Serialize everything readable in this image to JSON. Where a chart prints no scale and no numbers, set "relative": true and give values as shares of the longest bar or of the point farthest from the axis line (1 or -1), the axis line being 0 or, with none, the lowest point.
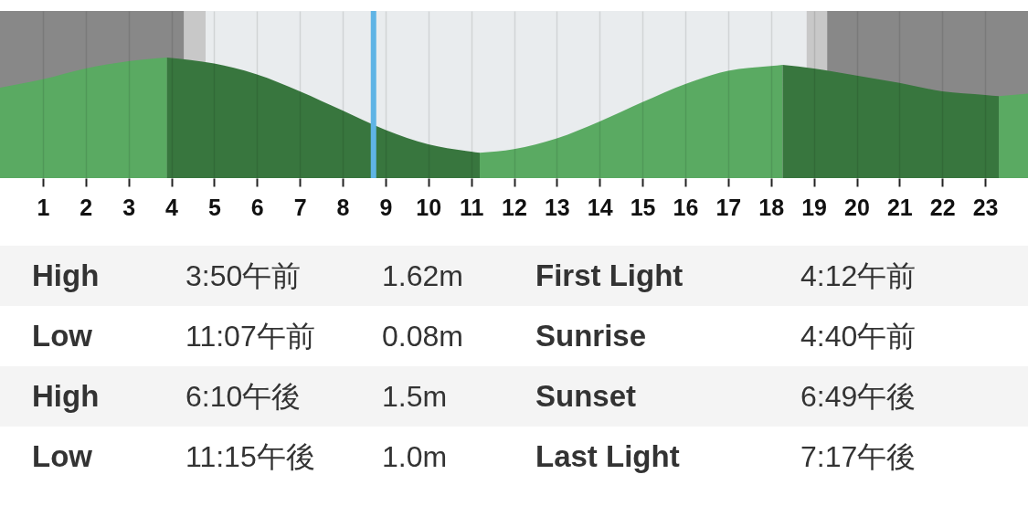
{
  "chart_data": {
    "type": "area",
    "relative": true,
    "series": [
      {
        "color": "#5aaa62",
        "x": [
          0,
          1,
          2,
          3,
          3.9
        ],
        "values": [
          0.75,
          0.82,
          0.91,
          0.97,
          1
        ]
      },
      {
        "color": "#38763e",
        "x": [
          3.9,
          5,
          6,
          7,
          8,
          9,
          10,
          11,
          11.2
        ],
        "values": [
          1,
          0.95,
          0.86,
          0.72,
          0.56,
          0.4,
          0.28,
          0.22,
          0.21
        ]
      },
      {
        "color": "#5aaa62",
        "x": [
          11.2,
          12,
          13,
          14,
          15,
          16,
          17,
          18,
          18.27
        ],
        "values": [
          0.21,
          0.24,
          0.33,
          0.47,
          0.63,
          0.78,
          0.89,
          0.93,
          0.94
        ]
      },
      {
        "color": "#38763e",
        "x": [
          18.27,
          19,
          20,
          21,
          22,
          23,
          23.32
        ],
        "values": [
          0.94,
          0.91,
          0.85,
          0.79,
          0.72,
          0.69,
          0.68
        ]
      },
      {
        "color": "#5aaa62",
        "x": [
          23.32,
          24
        ],
        "values": [
          0.68,
          0.7
        ]
      }
    ],
    "xlim": [
      0,
      24
    ],
    "xticks": [
      1,
      2,
      3,
      4,
      5,
      6,
      7,
      8,
      9,
      10,
      11,
      12,
      13,
      14,
      15,
      16,
      17,
      18,
      19,
      20,
      21,
      22,
      23
    ],
    "grid": "x",
    "bands": [
      {
        "axis": "x",
        "from": 0,
        "to": 4.3,
        "color": "#888888"
      },
      {
        "axis": "x",
        "from": 4.3,
        "to": 4.8,
        "color": "#c8c8c8"
      },
      {
        "axis": "x",
        "from": 4.8,
        "to": 18.83,
        "color": "#e9ecee"
      },
      {
        "axis": "x",
        "from": 18.83,
        "to": 19.31,
        "color": "#c8c8c8"
      },
      {
        "axis": "x",
        "from": 19.31,
        "to": 24,
        "color": "#888888"
      }
    ],
    "ref_lines": [
      {
        "axis": "x",
        "value": 8.72,
        "color": "#5fb4e5"
      }
    ],
    "annotations": [
      "High",
      "3:50午前",
      "1.62m",
      "First Light",
      "4:12午前",
      "Low",
      "11:07午前",
      "0.08m",
      "Sunrise",
      "4:40午前",
      "High",
      "6:10午後",
      "1.5m",
      "Sunset",
      "6:49午後",
      "Low",
      "11:15午後",
      "1.0m",
      "Last Light",
      "7:17午後"
    ]
  }
}
